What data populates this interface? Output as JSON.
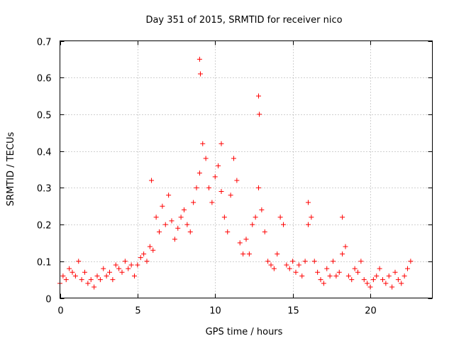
{
  "chart_data": {
    "type": "scatter",
    "title": "Day 351 of 2015, SRMTID for receiver nico",
    "xlabel": "GPS time / hours",
    "ylabel": "SRMTID / TECUs",
    "xlim": [
      0,
      24
    ],
    "ylim": [
      0,
      0.7
    ],
    "xticks": [
      0,
      5,
      10,
      15,
      20
    ],
    "xtick_labels": [
      "0",
      "5",
      "10",
      "15",
      "20"
    ],
    "yticks": [
      0,
      0.1,
      0.2,
      0.3,
      0.4,
      0.5,
      0.6,
      0.7
    ],
    "ytick_labels": [
      "0",
      "0.1",
      "0.2",
      "0.3",
      "0.4",
      "0.5",
      "0.6",
      "0.7"
    ],
    "grid": true,
    "marker": "+",
    "marker_color": "#ff0000",
    "series": [
      {
        "name": "SRMTID",
        "x": [
          0.0,
          0.2,
          0.4,
          0.6,
          0.8,
          1.0,
          1.2,
          1.4,
          1.6,
          1.8,
          2.0,
          2.2,
          2.4,
          2.6,
          2.8,
          3.0,
          3.2,
          3.4,
          3.6,
          3.8,
          4.0,
          4.2,
          4.4,
          4.6,
          4.8,
          5.0,
          5.2,
          5.4,
          5.6,
          5.8,
          6.0,
          6.2,
          6.4,
          6.6,
          6.8,
          7.0,
          7.2,
          7.4,
          7.6,
          7.8,
          8.0,
          8.2,
          8.4,
          8.6,
          8.8,
          9.0,
          9.2,
          9.4,
          9.6,
          9.8,
          10.0,
          10.2,
          10.4,
          10.6,
          10.8,
          11.0,
          11.2,
          11.4,
          11.6,
          11.8,
          12.0,
          12.2,
          12.4,
          12.6,
          12.8,
          13.0,
          13.2,
          13.4,
          13.6,
          13.8,
          14.0,
          14.2,
          14.4,
          14.6,
          14.8,
          15.0,
          15.2,
          15.4,
          15.6,
          15.8,
          16.0,
          16.2,
          16.4,
          16.6,
          16.8,
          17.0,
          17.2,
          17.4,
          17.6,
          17.8,
          18.0,
          18.2,
          18.4,
          18.6,
          18.8,
          19.0,
          19.2,
          19.4,
          19.6,
          19.8,
          20.0,
          20.2,
          20.4,
          20.6,
          20.8,
          21.0,
          21.2,
          21.4,
          21.6,
          21.8,
          22.0,
          22.2,
          22.4,
          22.6,
          9.0,
          9.05,
          10.4,
          12.8,
          12.85,
          5.9,
          16.0,
          18.2
        ],
        "y": [
          0.04,
          0.06,
          0.05,
          0.08,
          0.07,
          0.06,
          0.1,
          0.05,
          0.07,
          0.04,
          0.05,
          0.03,
          0.06,
          0.05,
          0.08,
          0.06,
          0.07,
          0.05,
          0.09,
          0.08,
          0.07,
          0.1,
          0.08,
          0.09,
          0.06,
          0.09,
          0.11,
          0.12,
          0.1,
          0.14,
          0.13,
          0.22,
          0.18,
          0.25,
          0.2,
          0.28,
          0.21,
          0.16,
          0.19,
          0.22,
          0.24,
          0.2,
          0.18,
          0.26,
          0.3,
          0.34,
          0.42,
          0.38,
          0.3,
          0.26,
          0.33,
          0.36,
          0.29,
          0.22,
          0.18,
          0.28,
          0.38,
          0.32,
          0.15,
          0.12,
          0.16,
          0.12,
          0.2,
          0.22,
          0.3,
          0.24,
          0.18,
          0.1,
          0.09,
          0.08,
          0.12,
          0.22,
          0.2,
          0.09,
          0.08,
          0.1,
          0.07,
          0.09,
          0.06,
          0.1,
          0.2,
          0.22,
          0.1,
          0.07,
          0.05,
          0.04,
          0.08,
          0.06,
          0.1,
          0.06,
          0.07,
          0.12,
          0.14,
          0.06,
          0.05,
          0.08,
          0.07,
          0.1,
          0.05,
          0.04,
          0.03,
          0.05,
          0.06,
          0.08,
          0.05,
          0.04,
          0.06,
          0.03,
          0.07,
          0.05,
          0.04,
          0.06,
          0.08,
          0.1,
          0.65,
          0.61,
          0.42,
          0.55,
          0.5,
          0.32,
          0.26,
          0.22
        ]
      }
    ]
  }
}
